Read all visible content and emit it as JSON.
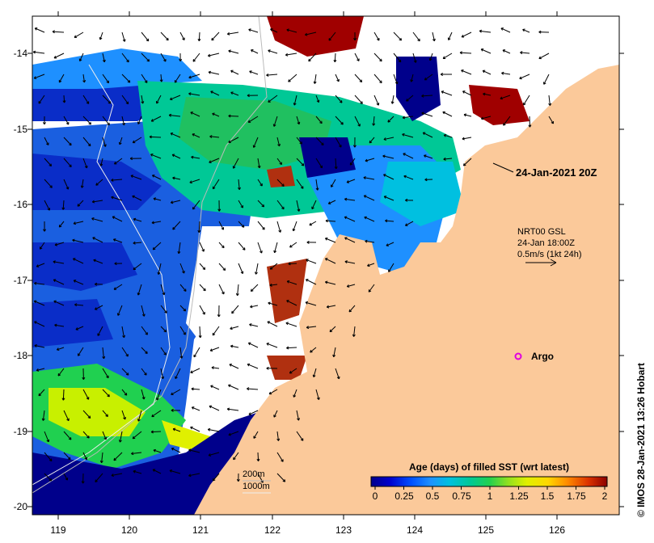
{
  "map": {
    "lat_labels": [
      "-14",
      "-15",
      "-16",
      "-17",
      "-18",
      "-19",
      "-20"
    ],
    "lon_labels": [
      "119",
      "120",
      "121",
      "122",
      "123",
      "124",
      "125",
      "126"
    ],
    "timestamp_label": "24-Jan-2021 20Z",
    "current_info": {
      "line1": "NRT00 GSL",
      "line2": "24-Jan 18:00Z",
      "line3": "0.5m/s (1kt 24h)"
    },
    "argo_label": "Argo",
    "isobaths": {
      "line1": "200m",
      "line2": "1000m"
    },
    "copyright": "© IMOS 28-Jan-2021 13:26 Hobart"
  },
  "legend": {
    "title": "Age (days) of filled SST (wrt latest)",
    "ticks": [
      "0",
      "0.25",
      "0.5",
      "0.75",
      "1",
      "1.25",
      "1.5",
      "1.75",
      "2"
    ],
    "colors": [
      "#00008b",
      "#0000cd",
      "#0050ff",
      "#1e90ff",
      "#00c0e0",
      "#00c896",
      "#20d050",
      "#90e020",
      "#e0f000",
      "#ffd700",
      "#ff8c00",
      "#dc3200",
      "#8b0000"
    ]
  },
  "colors": {
    "land": "#fbc99a",
    "frame": "#000000"
  }
}
